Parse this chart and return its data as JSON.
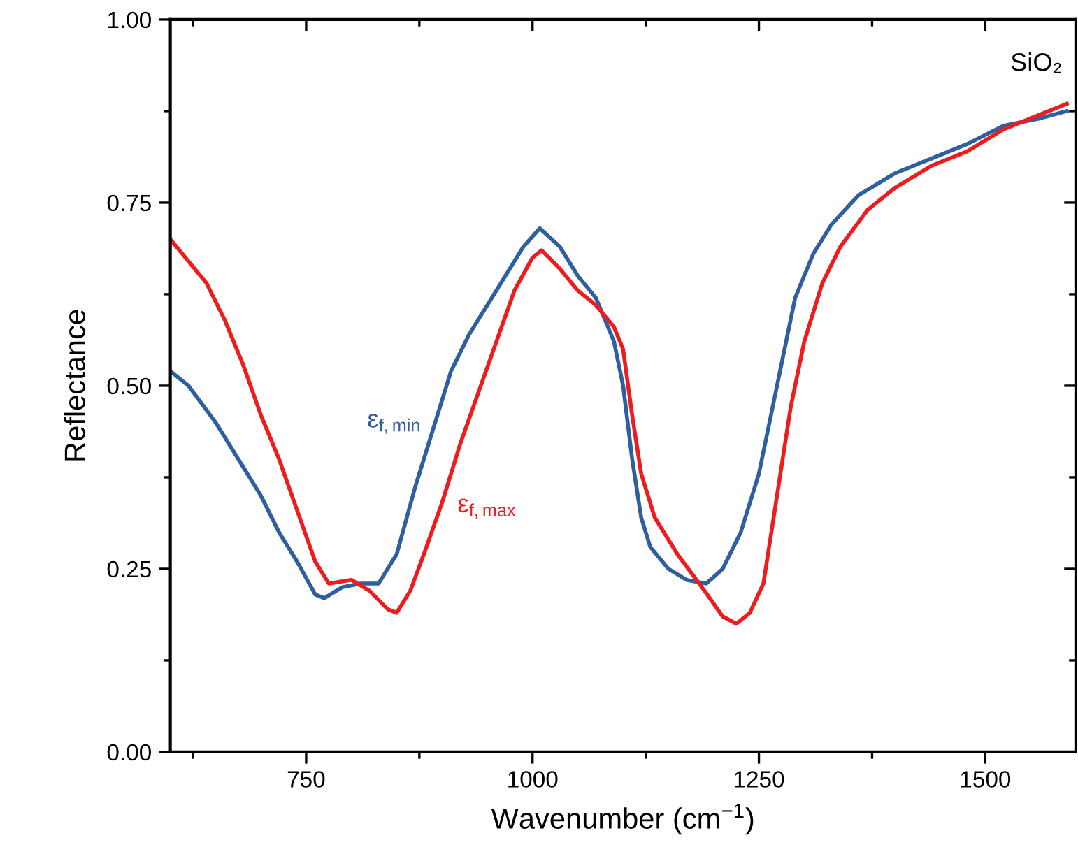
{
  "chart_data": {
    "type": "line",
    "xlabel": "Wavenumber (cm$^{−1}$)",
    "ylabel": "Reflectance",
    "xlim": [
      600,
      1600
    ],
    "ylim": [
      0,
      1
    ],
    "xticks": [
      {
        "value": 625,
        "label": null
      },
      750,
      {
        "value": 875,
        "label": null
      },
      1000,
      {
        "value": 1125,
        "label": null
      },
      1250,
      {
        "value": 1375,
        "label": null
      },
      1500
    ],
    "yticks": [
      {
        "value": 0,
        "label": "0.00"
      },
      {
        "value": 0.125,
        "label": null
      },
      {
        "value": 0.25,
        "label": "0.25"
      },
      {
        "value": 0.375,
        "label": null
      },
      {
        "value": 0.5,
        "label": "0.50"
      },
      {
        "value": 0.625,
        "label": null
      },
      {
        "value": 0.75,
        "label": "0.75"
      },
      {
        "value": 0.875,
        "label": null
      },
      {
        "value": 1,
        "label": "1.00"
      }
    ],
    "grid": false,
    "legend": false,
    "line_style": "solid",
    "marker": "none",
    "series": [
      {
        "name": "ε$_{f,min}$",
        "color": "#2e5f9e",
        "x": [
          600,
          620,
          650,
          680,
          700,
          720,
          740,
          760,
          770,
          790,
          810,
          830,
          850,
          870,
          890,
          910,
          930,
          950,
          970,
          990,
          1008,
          1030,
          1050,
          1070,
          1090,
          1100,
          1110,
          1120,
          1130,
          1150,
          1170,
          1192,
          1210,
          1230,
          1250,
          1270,
          1290,
          1310,
          1330,
          1360,
          1400,
          1440,
          1480,
          1520,
          1560,
          1590
        ],
        "values": [
          0.52,
          0.5,
          0.45,
          0.39,
          0.35,
          0.3,
          0.26,
          0.215,
          0.21,
          0.225,
          0.23,
          0.23,
          0.27,
          0.36,
          0.44,
          0.52,
          0.57,
          0.61,
          0.65,
          0.69,
          0.715,
          0.69,
          0.65,
          0.62,
          0.56,
          0.5,
          0.4,
          0.32,
          0.28,
          0.25,
          0.235,
          0.23,
          0.25,
          0.3,
          0.38,
          0.5,
          0.62,
          0.68,
          0.72,
          0.76,
          0.79,
          0.81,
          0.83,
          0.855,
          0.865,
          0.875
        ]
      },
      {
        "name": "ε$_{f,max}$",
        "color": "#ee1c1c",
        "x": [
          600,
          620,
          640,
          660,
          680,
          700,
          720,
          740,
          760,
          775,
          800,
          820,
          840,
          850,
          865,
          880,
          900,
          920,
          940,
          960,
          980,
          1000,
          1010,
          1030,
          1050,
          1070,
          1090,
          1100,
          1110,
          1120,
          1135,
          1160,
          1190,
          1210,
          1225,
          1240,
          1255,
          1270,
          1285,
          1300,
          1320,
          1340,
          1370,
          1400,
          1440,
          1480,
          1520,
          1560,
          1590
        ],
        "values": [
          0.7,
          0.67,
          0.64,
          0.59,
          0.53,
          0.46,
          0.4,
          0.33,
          0.26,
          0.23,
          0.235,
          0.22,
          0.195,
          0.19,
          0.22,
          0.27,
          0.34,
          0.42,
          0.49,
          0.56,
          0.63,
          0.675,
          0.685,
          0.66,
          0.63,
          0.61,
          0.58,
          0.55,
          0.46,
          0.38,
          0.32,
          0.27,
          0.22,
          0.185,
          0.175,
          0.19,
          0.23,
          0.35,
          0.47,
          0.56,
          0.64,
          0.69,
          0.74,
          0.77,
          0.8,
          0.82,
          0.85,
          0.87,
          0.885
        ]
      }
    ],
    "annotations": [
      "SiO₂"
    ]
  }
}
